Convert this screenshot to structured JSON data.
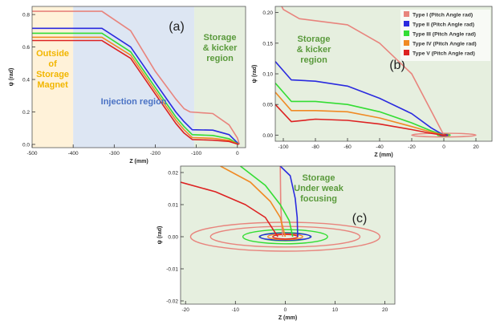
{
  "chart_data": [
    {
      "id": "a",
      "type": "line",
      "panel_label": "(a)",
      "xlabel": "Z (mm)",
      "ylabel": "ψ (rad)",
      "xlim": [
        -500,
        20
      ],
      "ylim": [
        -0.02,
        0.85
      ],
      "xticks": [
        -500,
        -400,
        -300,
        -200,
        -100,
        0
      ],
      "yticks": [
        0.0,
        0.2,
        0.4,
        0.6,
        0.8
      ],
      "ytick_labels": [
        "0.0",
        "0.2",
        "0.4",
        "0.6",
        "0.8"
      ],
      "regions": [
        {
          "label": "Outside of Storage Magnet",
          "lines": [
            "Outside",
            "of",
            "Storage",
            "Magnet"
          ],
          "x": [
            -500,
            -400
          ],
          "fill": "#fff2d9",
          "text_color": "#f2b600"
        },
        {
          "label": "Injection region",
          "lines": [
            "Injection region"
          ],
          "x": [
            -400,
            -105
          ],
          "fill": "#dde6f3",
          "text_color": "#4a72c4"
        },
        {
          "label": "Storage & kicker region",
          "lines": [
            "Storage",
            "& kicker",
            "region"
          ],
          "x": [
            -105,
            20
          ],
          "fill": "#e6efdf",
          "text_color": "#5a9a3c"
        }
      ],
      "series": [
        {
          "name": "Type I",
          "color": "#e8847d",
          "points": [
            [
              -500,
              0.82
            ],
            [
              -330,
              0.82
            ],
            [
              -260,
              0.7
            ],
            [
              -200,
              0.45
            ],
            [
              -150,
              0.28
            ],
            [
              -130,
              0.22
            ],
            [
              -115,
              0.2
            ],
            [
              -60,
              0.19
            ],
            [
              -20,
              0.12
            ],
            [
              0,
              0.04
            ],
            [
              5,
              0.0
            ]
          ]
        },
        {
          "name": "Type II",
          "color": "#2a2adf",
          "points": [
            [
              -500,
              0.715
            ],
            [
              -330,
              0.715
            ],
            [
              -260,
              0.6
            ],
            [
              -200,
              0.38
            ],
            [
              -150,
              0.2
            ],
            [
              -130,
              0.14
            ],
            [
              -110,
              0.09
            ],
            [
              -60,
              0.088
            ],
            [
              -20,
              0.06
            ],
            [
              0,
              0.01
            ],
            [
              3,
              0.0
            ]
          ]
        },
        {
          "name": "Type III",
          "color": "#33dd33",
          "points": [
            [
              -500,
              0.685
            ],
            [
              -330,
              0.685
            ],
            [
              -260,
              0.57
            ],
            [
              -200,
              0.35
            ],
            [
              -150,
              0.17
            ],
            [
              -130,
              0.11
            ],
            [
              -110,
              0.06
            ],
            [
              -60,
              0.055
            ],
            [
              -20,
              0.035
            ],
            [
              0,
              0.005
            ],
            [
              3,
              0.0
            ]
          ]
        },
        {
          "name": "Type IV",
          "color": "#f08a24",
          "points": [
            [
              -500,
              0.66
            ],
            [
              -330,
              0.66
            ],
            [
              -260,
              0.55
            ],
            [
              -200,
              0.33
            ],
            [
              -150,
              0.15
            ],
            [
              -130,
              0.09
            ],
            [
              -110,
              0.042
            ],
            [
              -60,
              0.038
            ],
            [
              -20,
              0.025
            ],
            [
              0,
              0.003
            ],
            [
              3,
              0.0
            ]
          ]
        },
        {
          "name": "Type V",
          "color": "#dd2222",
          "points": [
            [
              -500,
              0.64
            ],
            [
              -330,
              0.64
            ],
            [
              -260,
              0.53
            ],
            [
              -200,
              0.31
            ],
            [
              -150,
              0.13
            ],
            [
              -130,
              0.07
            ],
            [
              -110,
              0.03
            ],
            [
              -60,
              0.026
            ],
            [
              -20,
              0.018
            ],
            [
              0,
              0.002
            ],
            [
              3,
              0.0
            ]
          ]
        }
      ]
    },
    {
      "id": "b",
      "type": "line",
      "panel_label": "(b)",
      "xlabel": "Z (mm)",
      "ylabel": "ψ (rad)",
      "xlim": [
        -105,
        30
      ],
      "ylim": [
        -0.01,
        0.21
      ],
      "xticks": [
        -100,
        -80,
        -60,
        -40,
        -20,
        0,
        20
      ],
      "yticks": [
        0.0,
        0.05,
        0.1,
        0.15,
        0.2
      ],
      "ytick_labels": [
        "0.00",
        "0.05",
        "0.10",
        "0.15",
        "0.20"
      ],
      "region_label": [
        "Storage",
        "& kicker",
        "region"
      ],
      "region_color": "#5a9a3c",
      "legend": {
        "placement": "top-right",
        "entries": [
          {
            "label": "Type I (Pitch Angle rad)",
            "color": "#e8847d"
          },
          {
            "label": "Type II (Pitch Angle rad)",
            "color": "#2a2adf"
          },
          {
            "label": "Type III (Pitch Angle rad)",
            "color": "#33dd33"
          },
          {
            "label": "Type IV (Pitch Angle rad)",
            "color": "#f08a24"
          },
          {
            "label": "Type V (Pitch Angle rad)",
            "color": "#dd2222"
          }
        ]
      },
      "series": [
        {
          "name": "Type I",
          "color": "#e8847d",
          "points": [
            [
              -105,
              0.23
            ],
            [
              -100,
              0.205
            ],
            [
              -90,
              0.19
            ],
            [
              -60,
              0.18
            ],
            [
              -40,
              0.15
            ],
            [
              -20,
              0.1
            ],
            [
              -8,
              0.04
            ],
            [
              0,
              0.0
            ]
          ]
        },
        {
          "name": "Type II",
          "color": "#2a2adf",
          "points": [
            [
              -105,
              0.12
            ],
            [
              -95,
              0.09
            ],
            [
              -80,
              0.088
            ],
            [
              -60,
              0.08
            ],
            [
              -40,
              0.06
            ],
            [
              -20,
              0.035
            ],
            [
              -8,
              0.012
            ],
            [
              0,
              0.0
            ]
          ]
        },
        {
          "name": "Type III",
          "color": "#33dd33",
          "points": [
            [
              -105,
              0.085
            ],
            [
              -95,
              0.055
            ],
            [
              -80,
              0.055
            ],
            [
              -60,
              0.05
            ],
            [
              -40,
              0.038
            ],
            [
              -20,
              0.02
            ],
            [
              -8,
              0.007
            ],
            [
              0,
              0.0
            ]
          ]
        },
        {
          "name": "Type IV",
          "color": "#f08a24",
          "points": [
            [
              -105,
              0.07
            ],
            [
              -95,
              0.04
            ],
            [
              -80,
              0.04
            ],
            [
              -60,
              0.038
            ],
            [
              -40,
              0.028
            ],
            [
              -20,
              0.014
            ],
            [
              -8,
              0.005
            ],
            [
              0,
              0.0
            ]
          ]
        },
        {
          "name": "Type V",
          "color": "#dd2222",
          "points": [
            [
              -105,
              0.05
            ],
            [
              -95,
              0.022
            ],
            [
              -80,
              0.026
            ],
            [
              -60,
              0.024
            ],
            [
              -40,
              0.018
            ],
            [
              -20,
              0.009
            ],
            [
              -8,
              0.003
            ],
            [
              0,
              0.0
            ]
          ]
        }
      ],
      "ellipses": [
        {
          "color": "#e8847d",
          "rx": 20,
          "ry": 0.003
        },
        {
          "color": "#33dd33",
          "rx": 4,
          "ry": 0.0015
        },
        {
          "color": "#f08a24",
          "rx": 3,
          "ry": 0.0012
        },
        {
          "color": "#2a2adf",
          "rx": 2.5,
          "ry": 0.001
        },
        {
          "color": "#dd2222",
          "rx": 1.5,
          "ry": 0.0008
        }
      ]
    },
    {
      "id": "c",
      "type": "line",
      "panel_label": "(c)",
      "xlabel": "Z (mm)",
      "ylabel": "ψ (rad)",
      "xlim": [
        -21,
        22
      ],
      "ylim": [
        -0.021,
        0.022
      ],
      "xticks": [
        -20,
        -10,
        0,
        10,
        20
      ],
      "yticks": [
        -0.02,
        -0.01,
        0.0,
        0.01,
        0.02
      ],
      "ytick_labels": [
        "-0.02",
        "-0.01",
        "0.00",
        "0.01",
        "0.02"
      ],
      "region_label": [
        "Storage",
        "Under weak",
        "focusing"
      ],
      "region_color": "#5a9a3c",
      "series": [
        {
          "name": "Type I",
          "color": "#e8847d",
          "points": [
            [
              -1,
              0.022
            ],
            [
              -0.9,
              0.01
            ],
            [
              -0.7,
              0.004
            ],
            [
              -0.5,
              0.0
            ]
          ]
        },
        {
          "name": "Type II",
          "color": "#2a2adf",
          "points": [
            [
              -1,
              0.022
            ],
            [
              1,
              0.019
            ],
            [
              2,
              0.012
            ],
            [
              2.4,
              0.006
            ],
            [
              2.5,
              0.0
            ]
          ]
        },
        {
          "name": "Type III",
          "color": "#33dd33",
          "points": [
            [
              -9,
              0.022
            ],
            [
              -4,
              0.016
            ],
            [
              -1,
              0.01
            ],
            [
              0.8,
              0.005
            ],
            [
              1.5,
              0.0
            ]
          ]
        },
        {
          "name": "Type IV",
          "color": "#f08a24",
          "points": [
            [
              -13,
              0.022
            ],
            [
              -7,
              0.017
            ],
            [
              -3,
              0.011
            ],
            [
              -1,
              0.006
            ],
            [
              0,
              0.0
            ]
          ]
        },
        {
          "name": "Type V",
          "color": "#dd2222",
          "points": [
            [
              -21,
              0.017
            ],
            [
              -14,
              0.014
            ],
            [
              -8,
              0.01
            ],
            [
              -4,
              0.006
            ],
            [
              -1.5,
              0.0
            ]
          ]
        }
      ],
      "ellipses": [
        {
          "color": "#e8847d",
          "rx": 19,
          "ry": 0.0045
        },
        {
          "color": "#e8847d",
          "rx": 15,
          "ry": 0.0032
        },
        {
          "color": "#33dd33",
          "rx": 8.5,
          "ry": 0.0022
        },
        {
          "color": "#33dd33",
          "rx": 5,
          "ry": 0.0013
        },
        {
          "color": "#2a2adf",
          "rx": 5.2,
          "ry": 0.0011
        },
        {
          "color": "#f08a24",
          "rx": 3.5,
          "ry": 0.0009
        },
        {
          "color": "#dd2222",
          "rx": 2.5,
          "ry": 0.0007
        }
      ]
    }
  ]
}
